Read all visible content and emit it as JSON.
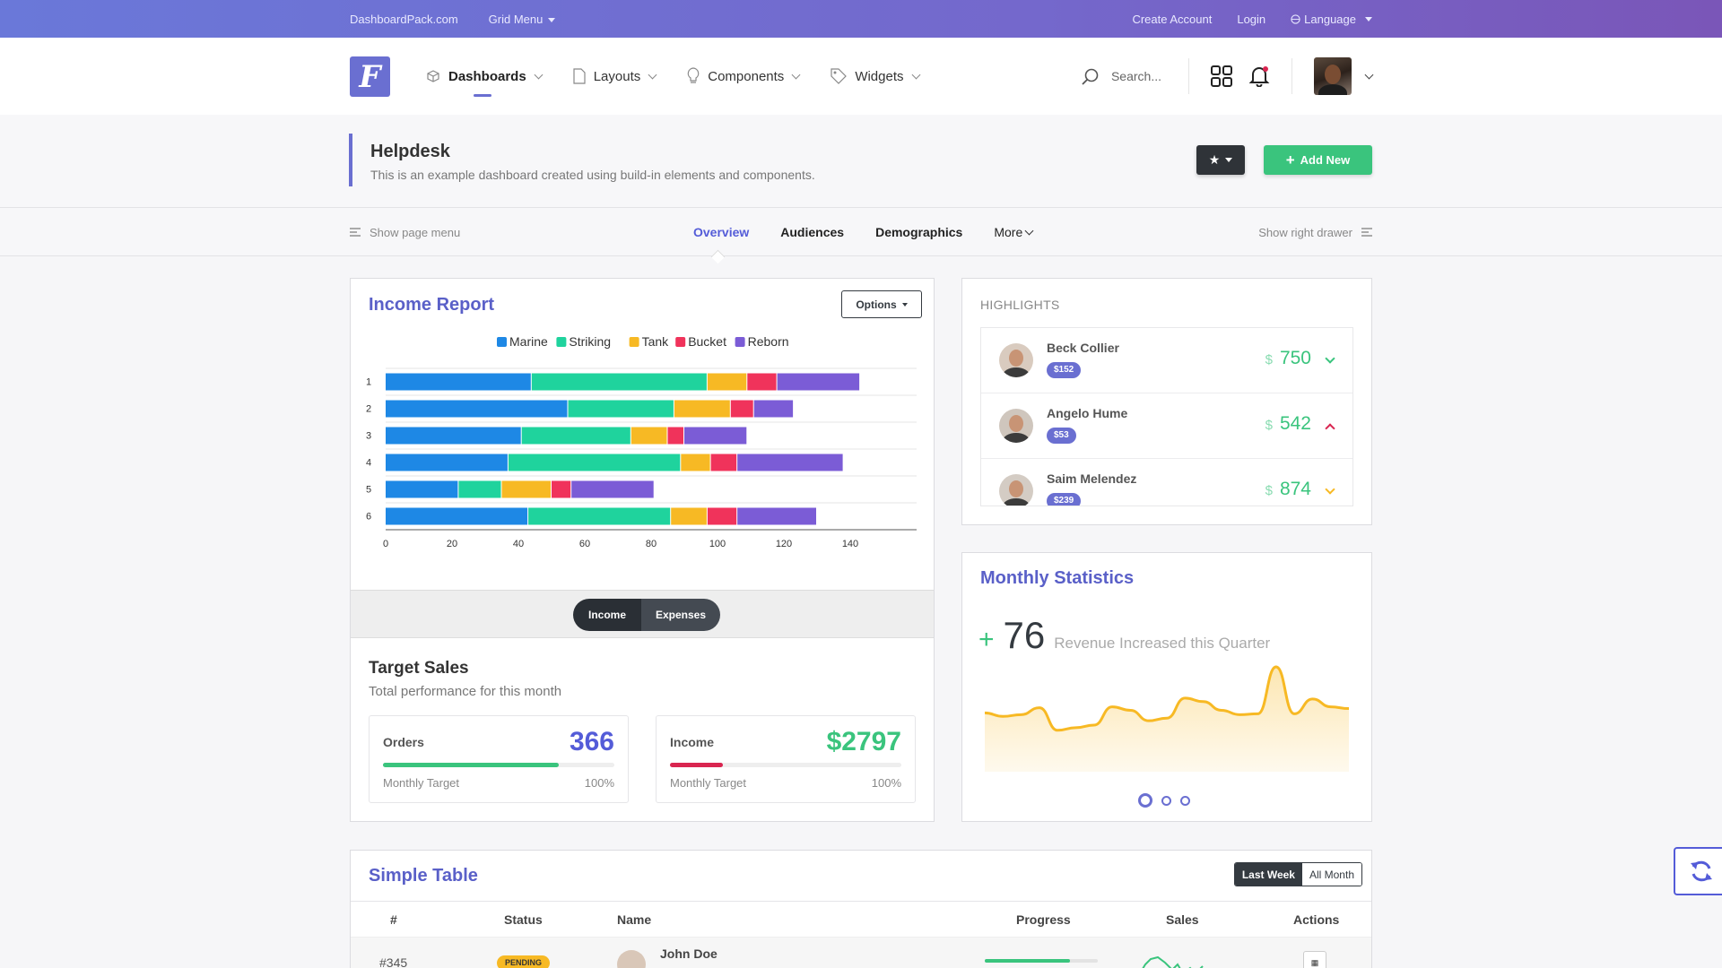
{
  "topbar": {
    "site": "DashboardPack.com",
    "grid_menu": "Grid Menu",
    "create_account": "Create Account",
    "login": "Login",
    "language": "Language"
  },
  "header": {
    "nav": [
      {
        "label": "Dashboards",
        "icon": "cube-icon",
        "active": true
      },
      {
        "label": "Layouts",
        "icon": "document-icon",
        "active": false
      },
      {
        "label": "Components",
        "icon": "lightbulb-icon",
        "active": false
      },
      {
        "label": "Widgets",
        "icon": "tag-icon",
        "active": false
      }
    ],
    "search_placeholder": "Search..."
  },
  "page": {
    "title": "Helpdesk",
    "subtitle": "This is an example dashboard created using build-in elements and components.",
    "add_new": "Add New"
  },
  "subnav": {
    "show_page_menu": "Show page menu",
    "show_right_drawer": "Show right drawer",
    "tabs": [
      "Overview",
      "Audiences",
      "Demographics",
      "More"
    ]
  },
  "income": {
    "title": "Income Report",
    "options": "Options",
    "toggle_income": "Income",
    "toggle_expenses": "Expenses"
  },
  "chart_data": {
    "type": "bar",
    "orientation": "horizontal",
    "stacked": true,
    "categories": [
      "1",
      "2",
      "3",
      "4",
      "5",
      "6"
    ],
    "series": [
      {
        "name": "Marine",
        "color": "#1e88e5",
        "values": [
          44,
          55,
          41,
          37,
          22,
          43
        ]
      },
      {
        "name": "Striking",
        "color": "#1fd39d",
        "values": [
          53,
          32,
          33,
          52,
          13,
          43
        ]
      },
      {
        "name": "Tank",
        "color": "#f7b924",
        "values": [
          12,
          17,
          11,
          9,
          15,
          11
        ]
      },
      {
        "name": "Bucket",
        "color": "#f0335b",
        "values": [
          9,
          7,
          5,
          8,
          6,
          9
        ]
      },
      {
        "name": "Reborn",
        "color": "#7b5cd6",
        "values": [
          25,
          12,
          19,
          32,
          25,
          24
        ]
      }
    ],
    "x_ticks": [
      "0",
      "20",
      "40",
      "60",
      "80",
      "100",
      "120",
      "140"
    ],
    "xlim": [
      0,
      160
    ],
    "legend_position": "top-center",
    "grid": true
  },
  "target": {
    "title": "Target Sales",
    "subtitle": "Total performance for this month",
    "orders": {
      "label": "Orders",
      "value": "366",
      "sub": "Monthly Target",
      "pct": "100%",
      "progress": 0.76,
      "color": "#3ac47d",
      "value_color": "#545cd8"
    },
    "income": {
      "label": "Income",
      "value": "$2797",
      "sub": "Monthly Target",
      "pct": "100%",
      "progress": 0.23,
      "color": "#d92550",
      "value_color": "#3ac47d"
    }
  },
  "highlights": {
    "label": "Highlights",
    "currency": "$",
    "items": [
      {
        "name": "Beck Collier",
        "badge": "$152",
        "value": "750",
        "trend": "down",
        "trend_color": "#3ac47d"
      },
      {
        "name": "Angelo Hume",
        "badge": "$53",
        "value": "542",
        "trend": "up",
        "trend_color": "#d92550"
      },
      {
        "name": "Saim Melendez",
        "badge": "$239",
        "value": "874",
        "trend": "down",
        "trend_color": "#f7b924"
      }
    ]
  },
  "monthly": {
    "title": "Monthly Statistics",
    "plus": "+",
    "value": "76",
    "text": "Revenue Increased this Quarter",
    "spark": [
      47,
      43,
      45,
      53,
      27,
      30,
      33,
      54,
      50,
      38,
      41,
      64,
      60,
      50,
      45,
      46,
      100,
      46,
      63,
      54,
      52
    ]
  },
  "table": {
    "title": "Simple Table",
    "last_week": "Last Week",
    "all_month": "All Month",
    "columns": [
      "#",
      "Status",
      "Name",
      "Progress",
      "Sales",
      "Actions"
    ],
    "rows": [
      {
        "id": "#345",
        "status": "PENDING",
        "name": "John Doe",
        "progress": 0.75
      }
    ]
  }
}
